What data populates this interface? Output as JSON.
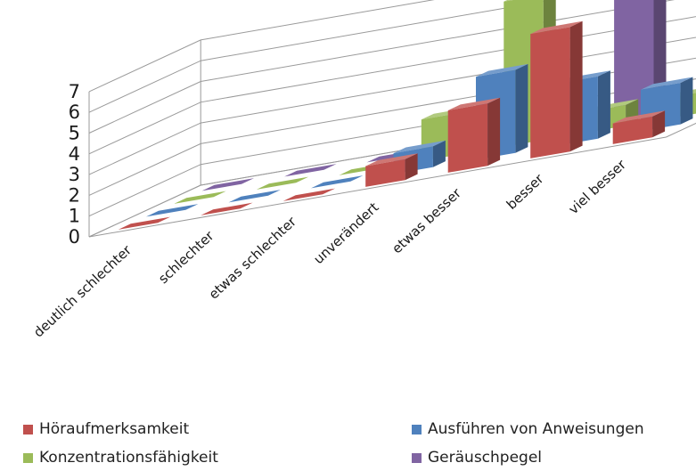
{
  "chart_data": {
    "type": "bar",
    "title": "",
    "xlabel": "",
    "ylabel": "",
    "ylim": [
      0,
      7
    ],
    "yticks": [
      0,
      1,
      2,
      3,
      4,
      5,
      6,
      7
    ],
    "grid": true,
    "style": "3d-column",
    "legend_position": "bottom",
    "categories": [
      "deutlich schlechter",
      "schlechter",
      "etwas schlechter",
      "unverändert",
      "etwas besser",
      "besser",
      "viel besser"
    ],
    "series": [
      {
        "name": "Höraufmerksamkeit",
        "color": "#c0504d",
        "values": [
          0,
          0,
          0,
          1,
          3,
          6,
          1
        ]
      },
      {
        "name": "Ausführen von Anweisungen",
        "color": "#4f81bd",
        "values": [
          0,
          0,
          0,
          1,
          4,
          3,
          2
        ]
      },
      {
        "name": "Konzentrationsfähigkeit",
        "color": "#9bbb59",
        "values": [
          0,
          0,
          0,
          2,
          7,
          1,
          1
        ]
      },
      {
        "name": "Geräuschpegel",
        "color": "#8064a2",
        "values": [
          0,
          0,
          0,
          0,
          0,
          7,
          1
        ]
      }
    ]
  }
}
